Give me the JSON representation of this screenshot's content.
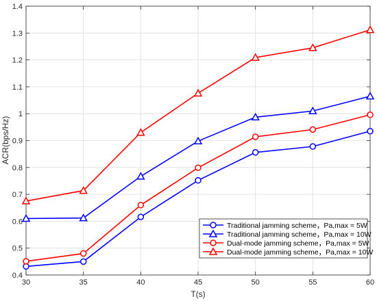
{
  "chart_data": {
    "type": "line",
    "title": "",
    "xlabel": "T(s)",
    "ylabel": "ACR(bps/Hz)",
    "x": [
      30,
      35,
      40,
      45,
      50,
      55,
      60
    ],
    "xlim": [
      30,
      60
    ],
    "ylim": [
      0.4,
      1.4
    ],
    "xticks": [
      "30",
      "35",
      "40",
      "45",
      "50",
      "55",
      "60"
    ],
    "yticks": [
      "0.4",
      "0.5",
      "0.6",
      "0.7",
      "0.8",
      "0.9",
      "1",
      "1.1",
      "1.2",
      "1.3",
      "1.4"
    ],
    "grid": true,
    "legend_position": "bottom-right",
    "series": [
      {
        "name": "Traditional jamming scheme，Pa,max = 5W",
        "color": "#0000ff",
        "marker": "circle",
        "values": [
          0.432,
          0.45,
          0.616,
          0.752,
          0.856,
          0.878,
          0.935
        ]
      },
      {
        "name": "Traditional jamming scheme，Pa,max = 10W",
        "color": "#0000ff",
        "marker": "triangle",
        "values": [
          0.61,
          0.612,
          0.767,
          0.898,
          0.987,
          1.01,
          1.065
        ]
      },
      {
        "name": "Dual-mode jamming scheme，Pa,max = 5W",
        "color": "#ff0000",
        "marker": "circle",
        "values": [
          0.451,
          0.48,
          0.66,
          0.799,
          0.914,
          0.941,
          0.996
        ]
      },
      {
        "name": "Dual-mode jamming scheme，Pa,max = 10W",
        "color": "#ff0000",
        "marker": "triangle",
        "values": [
          0.675,
          0.714,
          0.93,
          1.076,
          1.209,
          1.245,
          1.312
        ]
      }
    ]
  }
}
